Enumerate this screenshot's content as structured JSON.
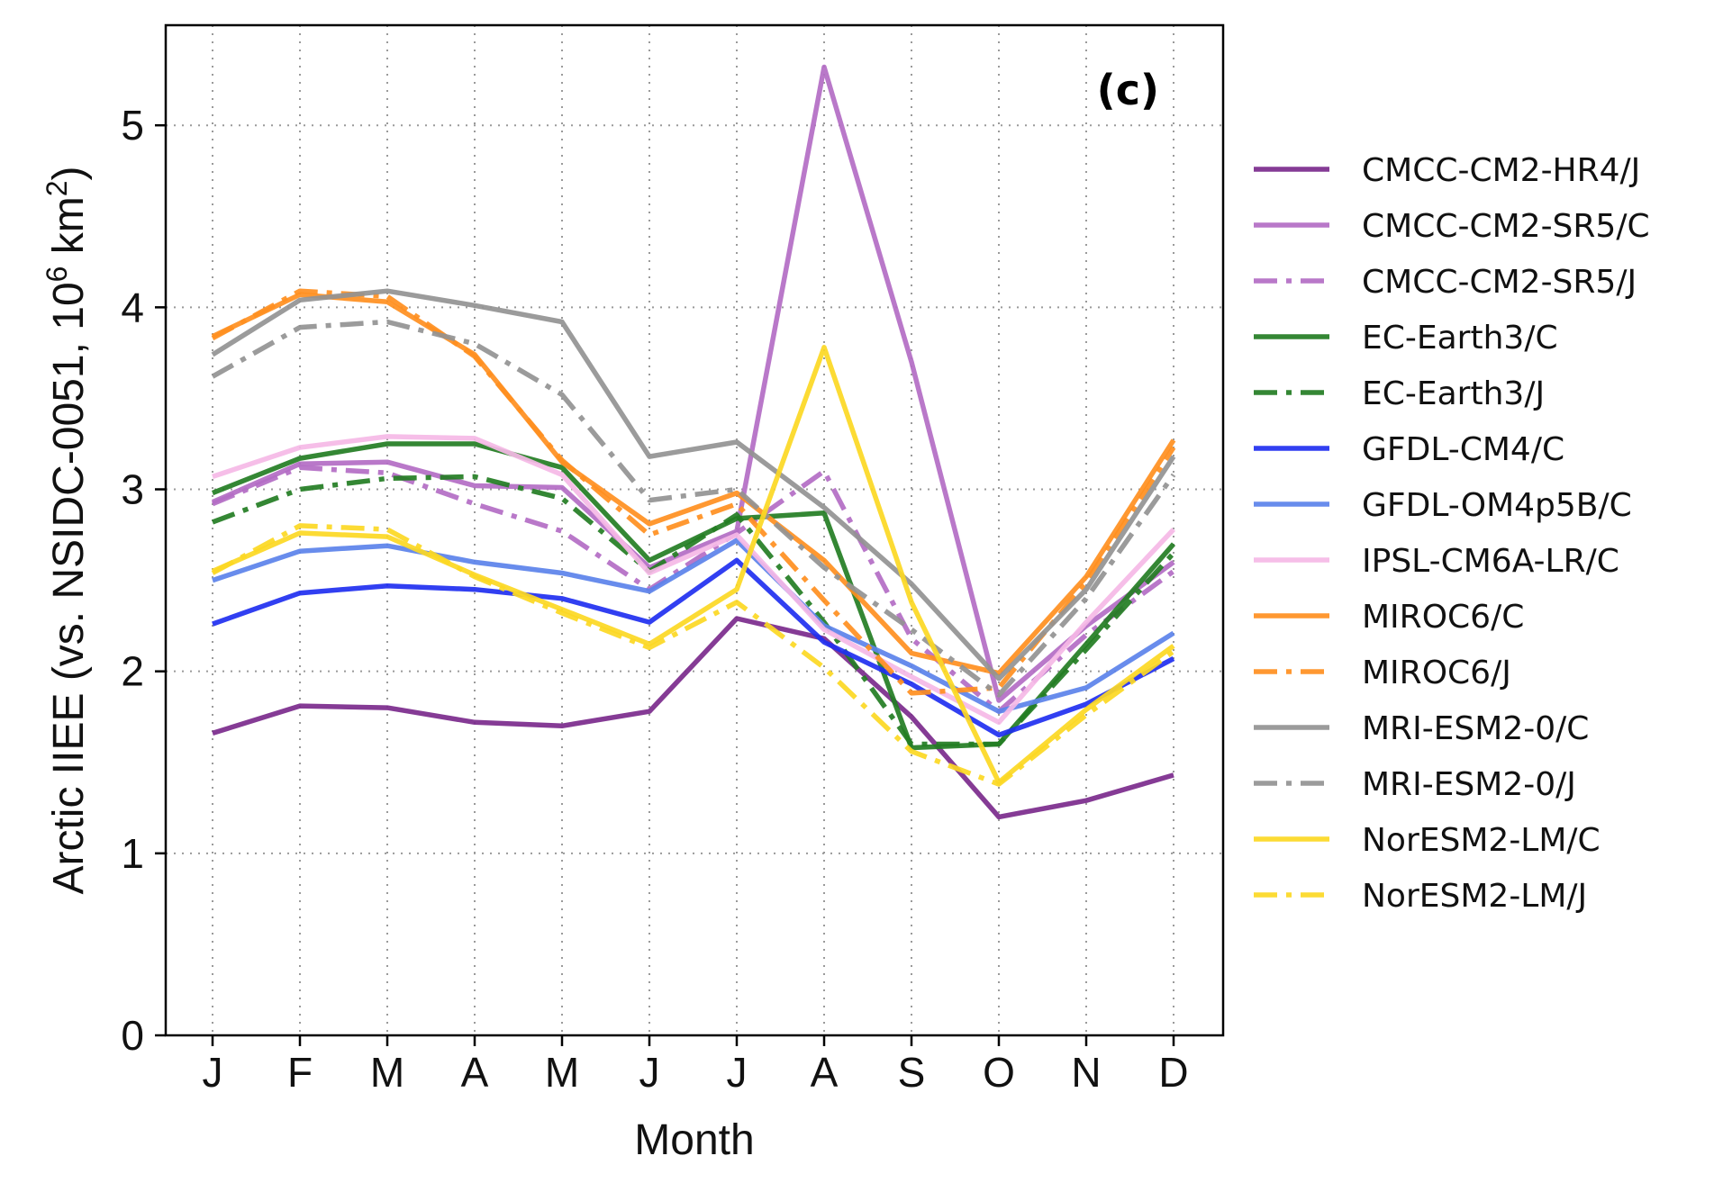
{
  "chart_data": {
    "type": "line",
    "panel_label": "(c)",
    "xlabel": "Month",
    "ylabel_main": "Arctic IIEE (vs. NSIDC-0051, 10",
    "ylabel_sup1": "6",
    "ylabel_mid": " km",
    "ylabel_sup2": "2",
    "ylabel_end": ")",
    "categories": [
      "J",
      "F",
      "M",
      "A",
      "M",
      "J",
      "J",
      "A",
      "S",
      "O",
      "N",
      "D"
    ],
    "ylim": [
      0,
      5.55
    ],
    "yticks": [
      "0",
      "1",
      "2",
      "3",
      "4",
      "5"
    ],
    "grid": true,
    "legend_position": "right-outside",
    "series": [
      {
        "name": "CMCC-CM2-HR4/J",
        "color": "#7b2a8c",
        "dash": "solid",
        "values": [
          1.66,
          1.81,
          1.8,
          1.72,
          1.7,
          1.78,
          2.29,
          2.18,
          1.75,
          1.2,
          1.29,
          1.43
        ]
      },
      {
        "name": "CMCC-CM2-SR5/C",
        "color": "#b36cc4",
        "dash": "solid",
        "values": [
          2.93,
          3.14,
          3.15,
          3.02,
          3.01,
          2.57,
          2.77,
          5.32,
          3.7,
          1.84,
          2.25,
          2.6
        ]
      },
      {
        "name": "CMCC-CM2-SR5/J",
        "color": "#b36cc4",
        "dash": "dashdot",
        "values": [
          2.92,
          3.12,
          3.09,
          2.92,
          2.77,
          2.45,
          2.76,
          3.1,
          2.18,
          1.78,
          2.2,
          2.55
        ]
      },
      {
        "name": "EC-Earth3/C",
        "color": "#237d23",
        "dash": "solid",
        "values": [
          2.98,
          3.17,
          3.25,
          3.25,
          3.12,
          2.61,
          2.84,
          2.87,
          1.58,
          1.6,
          2.15,
          2.7
        ]
      },
      {
        "name": "EC-Earth3/J",
        "color": "#237d23",
        "dash": "dashdot",
        "values": [
          2.82,
          3.0,
          3.06,
          3.07,
          2.95,
          2.55,
          2.86,
          2.27,
          1.6,
          1.6,
          2.12,
          2.65
        ]
      },
      {
        "name": "GFDL-CM4/C",
        "color": "#1f2ff0",
        "dash": "solid",
        "values": [
          2.26,
          2.43,
          2.47,
          2.45,
          2.4,
          2.27,
          2.61,
          2.16,
          1.93,
          1.65,
          1.82,
          2.07
        ]
      },
      {
        "name": "GFDL-OM4p5B/C",
        "color": "#5b82ea",
        "dash": "solid",
        "values": [
          2.5,
          2.66,
          2.69,
          2.6,
          2.54,
          2.44,
          2.72,
          2.25,
          2.03,
          1.78,
          1.91,
          2.21
        ]
      },
      {
        "name": "IPSL-CM6A-LR/C",
        "color": "#f5b8e6",
        "dash": "solid",
        "values": [
          3.07,
          3.23,
          3.29,
          3.28,
          3.08,
          2.54,
          2.75,
          2.23,
          1.97,
          1.72,
          2.27,
          2.78
        ]
      },
      {
        "name": "MIROC6/C",
        "color": "#ff8f1f",
        "dash": "solid",
        "values": [
          3.84,
          4.07,
          4.03,
          3.74,
          3.15,
          2.81,
          2.98,
          2.61,
          2.1,
          1.99,
          2.52,
          3.27
        ]
      },
      {
        "name": "MIROC6/J",
        "color": "#ff8f1f",
        "dash": "dashdot",
        "values": [
          3.83,
          4.09,
          4.06,
          3.73,
          3.16,
          2.75,
          2.92,
          2.39,
          1.88,
          1.91,
          2.49,
          3.23
        ]
      },
      {
        "name": "MRI-ESM2-0/C",
        "color": "#939393",
        "dash": "solid",
        "values": [
          3.74,
          4.04,
          4.09,
          4.01,
          3.92,
          3.18,
          3.26,
          2.9,
          2.48,
          1.96,
          2.45,
          3.18
        ]
      },
      {
        "name": "MRI-ESM2-0/J",
        "color": "#939393",
        "dash": "dashdot",
        "values": [
          3.62,
          3.89,
          3.92,
          3.8,
          3.52,
          2.94,
          3.0,
          2.57,
          2.23,
          1.87,
          2.4,
          3.08
        ]
      },
      {
        "name": "NorESM2-LM/C",
        "color": "#fcd823",
        "dash": "solid",
        "values": [
          2.55,
          2.76,
          2.74,
          2.53,
          2.34,
          2.15,
          2.45,
          3.78,
          2.38,
          1.39,
          1.79,
          2.14
        ]
      },
      {
        "name": "NorESM2-LM/J",
        "color": "#fcd823",
        "dash": "dashdot",
        "values": [
          2.54,
          2.8,
          2.78,
          2.52,
          2.32,
          2.13,
          2.38,
          2.02,
          1.56,
          1.38,
          1.76,
          2.11
        ]
      }
    ]
  }
}
